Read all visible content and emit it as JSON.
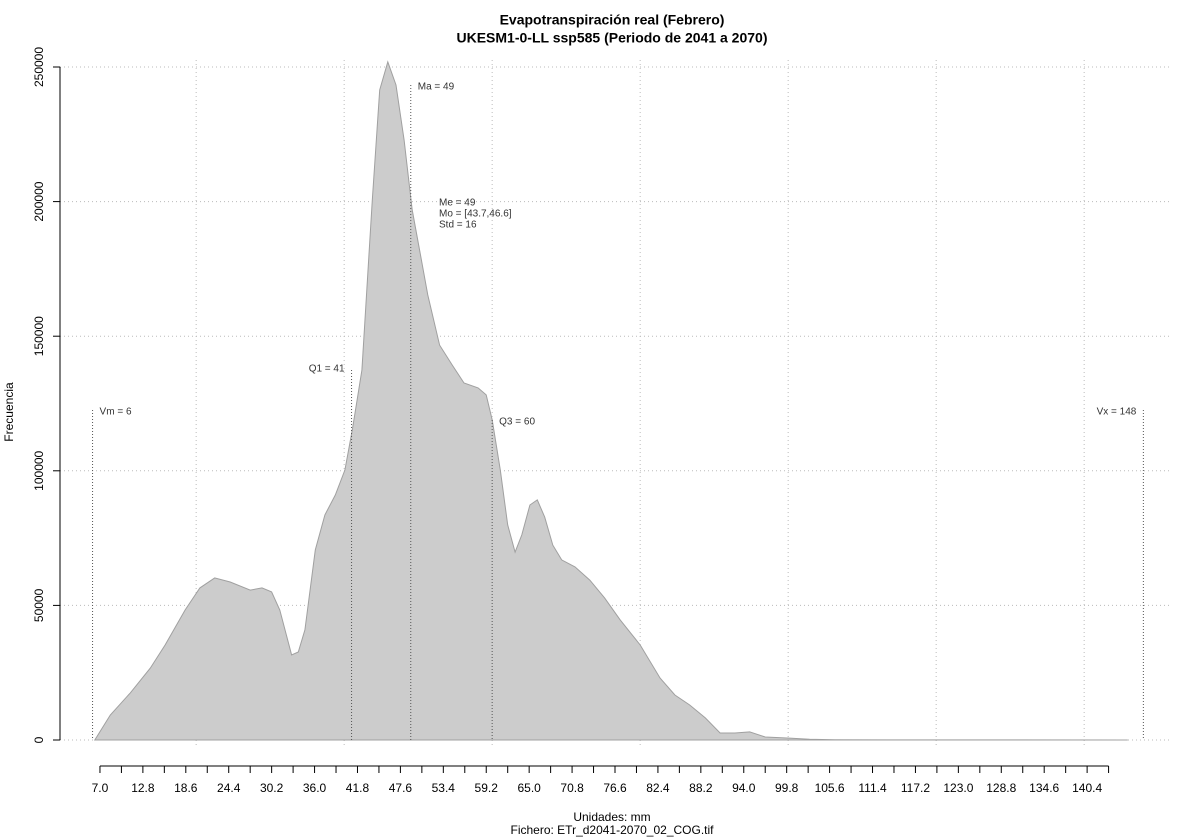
{
  "chart_data": {
    "type": "area",
    "title": "Evapotranspiración real (Febrero)",
    "subtitle": "UKESM1-0-LL ssp585 (Periodo de 2041 a 2070)",
    "xlabel": "Unidades: mm",
    "ylabel": "Frecuencia",
    "footer": "Fichero: ETr_d2041-2070_02_COG.tif",
    "color": "#cccccc",
    "x": [
      6.3,
      8.4,
      11.1,
      13.8,
      15.8,
      18.5,
      20.5,
      22.5,
      24.6,
      27.3,
      28.9,
      30.2,
      31.3,
      32.9,
      33.8,
      34.7,
      36.1,
      37.4,
      38.8,
      40.1,
      41.1,
      42.4,
      43.8,
      44.8,
      45.9,
      47.0,
      48.1,
      49.2,
      50.2,
      51.3,
      52.9,
      54.6,
      56.2,
      58.1,
      59.2,
      60.0,
      61.1,
      62.1,
      63.1,
      64.0,
      65.1,
      66.1,
      67.1,
      68.2,
      69.4,
      71.2,
      73.2,
      75.2,
      77.3,
      80.0,
      82.7,
      84.7,
      86.7,
      88.8,
      90.8,
      92.8,
      94.8,
      96.9,
      100.2,
      102.9,
      106.3,
      115.1,
      128.6,
      145.9
    ],
    "y": [
      0,
      9300,
      17500,
      26700,
      35300,
      48300,
      56500,
      60200,
      58700,
      55700,
      56500,
      55000,
      48300,
      31600,
      32700,
      40900,
      70600,
      83600,
      91000,
      100300,
      115200,
      137400,
      200600,
      241500,
      251900,
      243300,
      222900,
      196900,
      182000,
      165300,
      146700,
      139300,
      132600,
      130800,
      128200,
      118900,
      100300,
      79900,
      69800,
      76200,
      87300,
      89200,
      82800,
      72400,
      66900,
      64300,
      59400,
      52800,
      44600,
      35300,
      23000,
      16700,
      13000,
      8200,
      2600,
      2600,
      3000,
      1100,
      700,
      300,
      100,
      50,
      20,
      0
    ],
    "xlim": [
      1.6,
      151.6
    ],
    "ylim": [
      0,
      250000
    ],
    "yticks": [
      0,
      50000,
      100000,
      150000,
      200000,
      250000
    ],
    "xticks": [
      {
        "value": 7,
        "label": "7.0"
      },
      12.8,
      18.6,
      24.4,
      30.2,
      {
        "value": 36,
        "label": "36.0"
      },
      41.8,
      47.6,
      53.4,
      59.2,
      {
        "value": 65,
        "label": "65.0"
      },
      70.8,
      76.6,
      82.4,
      88.2,
      {
        "value": 94,
        "label": "94.0"
      },
      99.8,
      105.6,
      111.4,
      117.2,
      {
        "value": 123,
        "label": "123.0"
      },
      128.8,
      134.6,
      140.4
    ],
    "xminorticks": [
      9.9,
      15.7,
      21.5,
      27.3,
      33.1,
      38.9,
      44.7,
      50.5,
      56.3,
      62.1,
      67.9,
      73.7,
      79.5,
      85.3,
      91.1,
      96.9,
      102.7,
      108.5,
      114.3,
      120.1,
      125.9,
      131.7,
      137.5,
      143.3
    ],
    "xgrid": [
      20,
      40,
      60,
      80,
      100,
      120,
      140
    ],
    "grid": true,
    "annotations": [
      {
        "text": "Vm = 6",
        "x": 6
      },
      {
        "text": "Q1 = 41",
        "x": 41
      },
      {
        "text": "Ma = 49",
        "x": 49
      },
      {
        "text": "Q3 = 60",
        "x": 60
      },
      {
        "text": "Vx = 148",
        "x": 148
      }
    ],
    "stats": [
      "Me = 49",
      "Mo = [43.7,46.6]",
      "Std = 16"
    ]
  }
}
